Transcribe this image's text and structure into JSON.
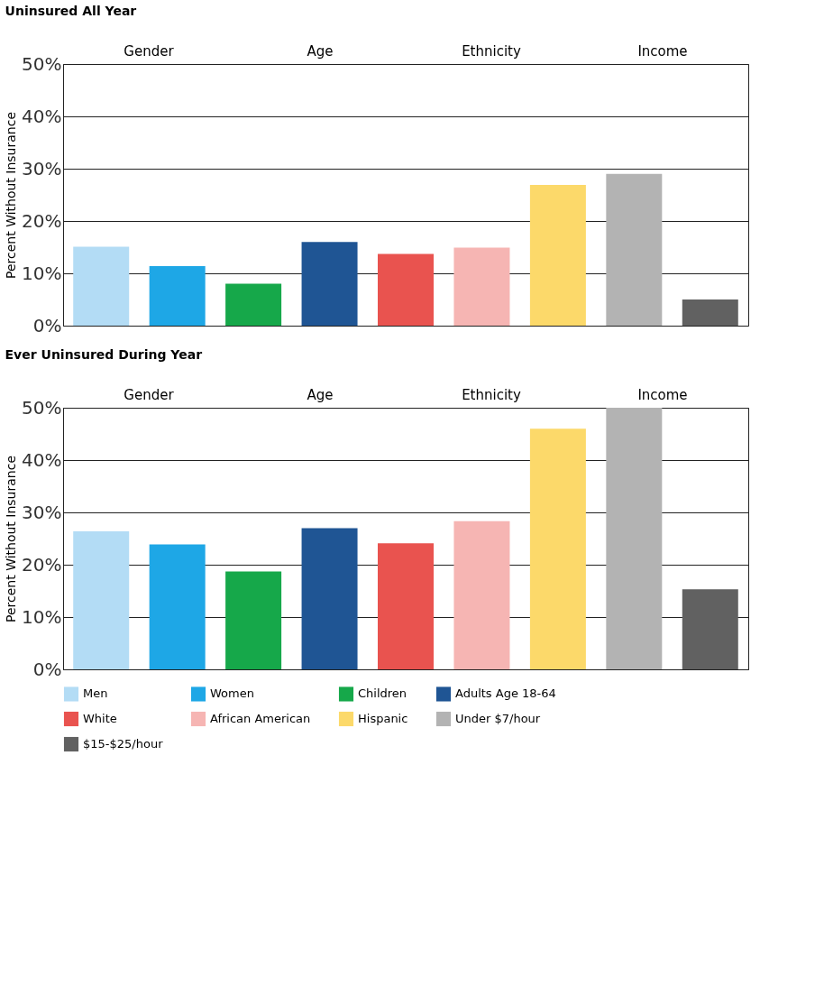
{
  "chart_data": [
    {
      "type": "bar",
      "title": "Uninsured All Year",
      "ylabel": "Percent Without Insurance",
      "categories": [
        null,
        null,
        null,
        null,
        null,
        null,
        null,
        null,
        null
      ],
      "values": [
        15.1,
        11.4,
        8.0,
        16.0,
        13.7,
        14.9,
        26.9,
        29.0,
        5.0
      ],
      "colors": [
        "#b3dcf5",
        "#1ea7e6",
        "#16a84a",
        "#1f5594",
        "#e9534f",
        "#f6b5b3",
        "#fcd96a",
        "#b3b3b3",
        "#616161"
      ],
      "ylim": [
        0,
        50
      ],
      "yticks": [
        {
          "value": 0,
          "label": "0%"
        },
        {
          "value": 10,
          "label": "10%"
        },
        {
          "value": 20,
          "label": "20%"
        },
        {
          "value": 30,
          "label": "30%"
        },
        {
          "value": 40,
          "label": "40%"
        },
        {
          "value": 50,
          "label": "50%"
        }
      ],
      "grid": "y",
      "tick_labels": "y",
      "annotations": [
        "Gender",
        "Age",
        "Ethnicity",
        "Income"
      ]
    },
    {
      "type": "bar",
      "title": "Ever Uninsured During Year",
      "ylabel": "Percent Without Insurance",
      "categories": [
        null,
        null,
        null,
        null,
        null,
        null,
        null,
        null,
        null
      ],
      "series": [
        {
          "name": "Men",
          "color": "#b3dcf5",
          "values": [
            26.4,
            null,
            null,
            null,
            null,
            null,
            null,
            null,
            null
          ]
        },
        {
          "name": "Women",
          "color": "#1ea7e6",
          "values": [
            null,
            23.9,
            null,
            null,
            null,
            null,
            null,
            null,
            null
          ]
        },
        {
          "name": "Children",
          "color": "#16a84a",
          "values": [
            null,
            null,
            18.7,
            null,
            null,
            null,
            null,
            null,
            null
          ]
        },
        {
          "name": "Adults Age 18-64",
          "color": "#1f5594",
          "values": [
            null,
            null,
            null,
            27.0,
            null,
            null,
            null,
            null,
            null
          ]
        },
        {
          "name": "White",
          "color": "#e9534f",
          "values": [
            null,
            null,
            null,
            null,
            24.1,
            null,
            null,
            null,
            null
          ]
        },
        {
          "name": "African American",
          "color": "#f6b5b3",
          "values": [
            null,
            null,
            null,
            null,
            null,
            28.3,
            null,
            null,
            null
          ]
        },
        {
          "name": "Hispanic",
          "color": "#fcd96a",
          "values": [
            null,
            null,
            null,
            null,
            null,
            null,
            46.0,
            null,
            null
          ]
        },
        {
          "name": "Under $7/hour",
          "color": "#b3b3b3",
          "values": [
            null,
            null,
            null,
            null,
            null,
            null,
            null,
            50.0,
            null
          ]
        },
        {
          "name": "$15-$25/hour",
          "color": "#616161",
          "values": [
            null,
            null,
            null,
            null,
            null,
            null,
            null,
            null,
            15.3
          ]
        }
      ],
      "ylim": [
        0,
        50
      ],
      "yticks": [
        {
          "value": 0,
          "label": "0%"
        },
        {
          "value": 10,
          "label": "10%"
        },
        {
          "value": 20,
          "label": "20%"
        },
        {
          "value": 30,
          "label": "30%"
        },
        {
          "value": 40,
          "label": "40%"
        },
        {
          "value": 50,
          "label": "50%"
        }
      ],
      "grid": "y",
      "tick_labels": "y",
      "legend": "bottom",
      "annotations": [
        "Gender",
        "Age",
        "Ethnicity",
        "Income"
      ]
    }
  ]
}
